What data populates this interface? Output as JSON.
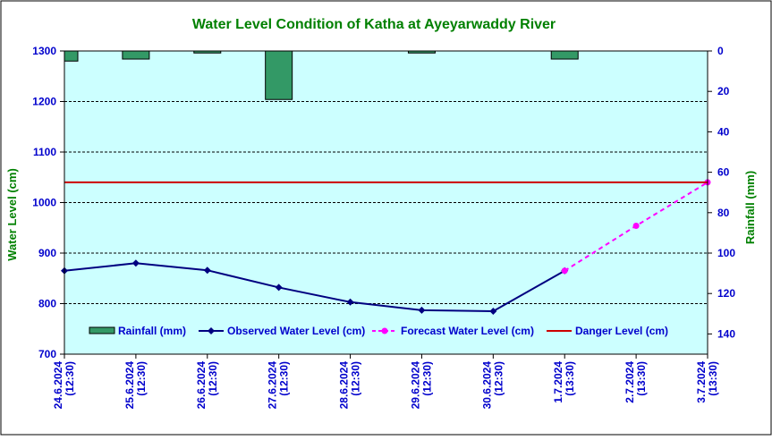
{
  "chart_data": {
    "type": "combo",
    "title": "Water Level Condition of Katha at Ayeyarwaddy River",
    "ylabel_left": "Water Level (cm)",
    "ylabel_right": "Rainfall (mm)",
    "ylim_left": [
      700,
      1300
    ],
    "yticks_left": [
      700,
      800,
      900,
      1000,
      1100,
      1200,
      1300
    ],
    "ylim_right": [
      0,
      150
    ],
    "yticks_right": [
      0,
      20,
      40,
      60,
      80,
      100,
      120,
      140
    ],
    "right_axis_inverted": true,
    "grid": "horizontal dashed",
    "legend_placement": "bottom inside plot",
    "categories": [
      [
        "24.6.2024",
        "(12:30)"
      ],
      [
        "25.6.2024",
        "(12:30)"
      ],
      [
        "26.6.2024",
        "(12:30)"
      ],
      [
        "27.6.2024",
        "(12:30)"
      ],
      [
        "28.6.2024",
        "(12:30)"
      ],
      [
        "29.6.2024",
        "(12:30)"
      ],
      [
        "30.6.2024",
        "(12:30)"
      ],
      [
        "1.7.2024",
        "(13:30)"
      ],
      [
        "2.7.2024",
        "(13:30)"
      ],
      [
        "3.7.2024",
        "(13:30)"
      ]
    ],
    "series": [
      {
        "name": "Rainfall (mm)",
        "kind": "bar",
        "axis": "right",
        "color": "#339966",
        "values": [
          5,
          4,
          1,
          24,
          0,
          1,
          0,
          4,
          null,
          null
        ]
      },
      {
        "name": "Observed Water Level (cm)",
        "kind": "line",
        "axis": "left",
        "color": "#000080",
        "values": [
          865,
          880,
          866,
          832,
          803,
          787,
          785,
          865,
          null,
          null
        ]
      },
      {
        "name": "Forecast Water Level (cm)",
        "kind": "dashed-line",
        "axis": "left",
        "color": "#ff00ff",
        "values": [
          null,
          null,
          null,
          null,
          null,
          null,
          null,
          865,
          954,
          1040
        ]
      },
      {
        "name": "Danger Level (cm)",
        "kind": "hline",
        "axis": "left",
        "color": "#cc0000",
        "value": 1040
      }
    ]
  },
  "colors": {
    "plot_bg": "#ccffff",
    "title": "#008000",
    "left_axis_text": "#0000cc",
    "right_axis_text": "#0000cc",
    "axis_label": "#008000",
    "category_text": "#0000cc"
  }
}
